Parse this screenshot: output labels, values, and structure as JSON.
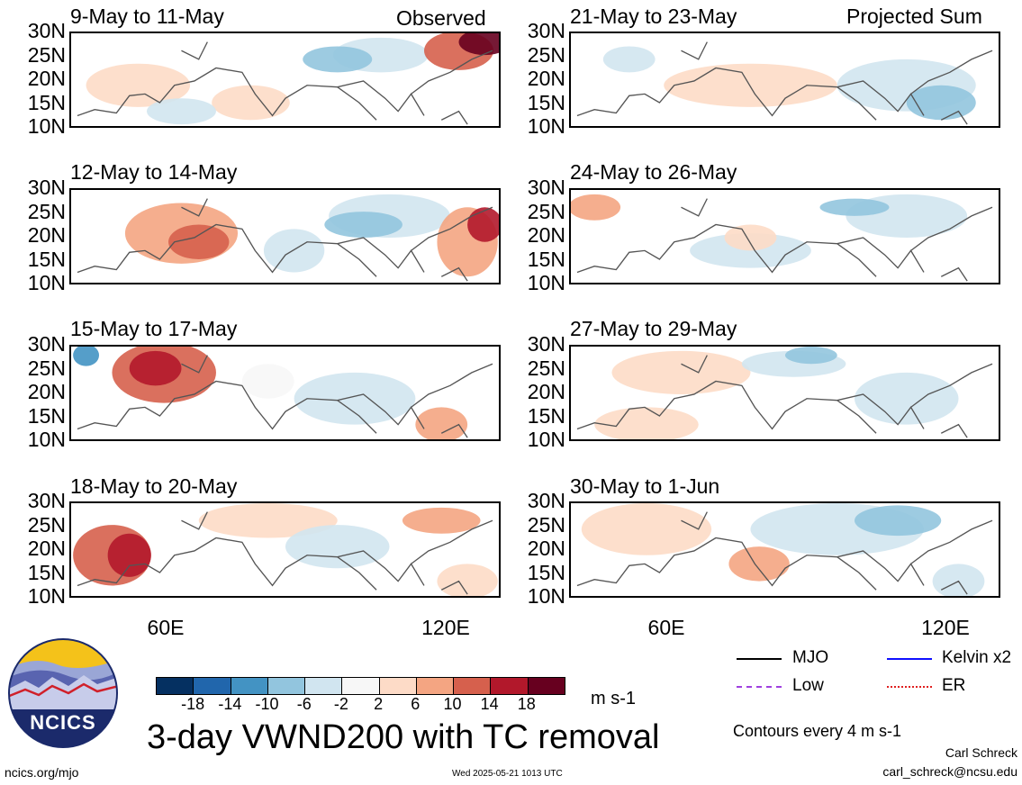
{
  "panels": {
    "left": [
      {
        "title": "9-May to 11-May",
        "tag": "Observed"
      },
      {
        "title": "12-May to 14-May",
        "tag": ""
      },
      {
        "title": "15-May to 17-May",
        "tag": ""
      },
      {
        "title": "18-May to 20-May",
        "tag": ""
      }
    ],
    "right": [
      {
        "title": "21-May to 23-May",
        "tag": "Projected Sum"
      },
      {
        "title": "24-May to 26-May",
        "tag": ""
      },
      {
        "title": "27-May to 29-May",
        "tag": ""
      },
      {
        "title": "30-May to 1-Jun",
        "tag": ""
      }
    ]
  },
  "axes": {
    "lat_labels": [
      "30N",
      "25N",
      "20N",
      "15N",
      "10N"
    ],
    "lon_labels": [
      "60E",
      "120E"
    ]
  },
  "colorbar": {
    "labels": [
      "-18",
      "-14",
      "-10",
      "-6",
      "-2",
      "2",
      "6",
      "10",
      "14",
      "18"
    ],
    "colors": [
      "#053061",
      "#2166ac",
      "#4393c3",
      "#92c5de",
      "#d1e5f0",
      "#f7f7f7",
      "#fddbc7",
      "#f4a582",
      "#d6604d",
      "#b2182b",
      "#67001f"
    ],
    "units": "m s-1"
  },
  "legend": {
    "mjo": "MJO",
    "kelvin": "Kelvin x2",
    "low": "Low",
    "er": "ER",
    "colors": {
      "mjo": "#000000",
      "kelvin": "#1010ff",
      "low": "#a040e0",
      "er": "#e02020"
    }
  },
  "footer": {
    "title": "3-day VWND200 with TC removal",
    "contours": "Contours every 4 m s-1",
    "author": "Carl Schreck",
    "email": "carl_schreck@ncsu.edu",
    "site": "ncics.org/mjo",
    "timestamp": "Wed 2025-05-21 1013 UTC",
    "logo_text": "NCICS"
  }
}
